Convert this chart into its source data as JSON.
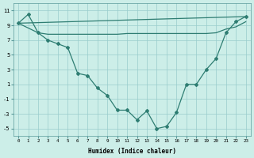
{
  "xlabel": "Humidex (Indice chaleur)",
  "bg_color": "#cceee8",
  "line_color": "#2e7d72",
  "grid_color": "#99cccc",
  "xlim": [
    -0.5,
    23.5
  ],
  "ylim": [
    -6,
    12
  ],
  "yticks": [
    -5,
    -3,
    -1,
    1,
    3,
    5,
    7,
    9,
    11
  ],
  "xticks": [
    0,
    1,
    2,
    3,
    4,
    5,
    6,
    7,
    8,
    9,
    10,
    11,
    12,
    13,
    14,
    15,
    16,
    17,
    18,
    19,
    20,
    21,
    22,
    23
  ],
  "line_flat": {
    "x": [
      0,
      2,
      3,
      4,
      5,
      6,
      7,
      8,
      9,
      10,
      11,
      12,
      13,
      14,
      15,
      16,
      17,
      18,
      19,
      20,
      21,
      22,
      23
    ],
    "y": [
      9.3,
      8.0,
      7.8,
      7.8,
      7.8,
      7.8,
      7.8,
      7.8,
      7.8,
      7.8,
      7.9,
      7.9,
      7.9,
      7.9,
      7.9,
      7.9,
      7.9,
      7.9,
      7.9,
      8.0,
      8.5,
      8.8,
      9.5
    ]
  },
  "line_diag": {
    "x": [
      0,
      23
    ],
    "y": [
      9.3,
      10.2
    ]
  },
  "line_curve": {
    "x": [
      0,
      1,
      2,
      3,
      4,
      5,
      6,
      7,
      8,
      9,
      10,
      11,
      12,
      13,
      14,
      15,
      16,
      17,
      18,
      19,
      20,
      21,
      22,
      23
    ],
    "y": [
      9.3,
      10.5,
      8.0,
      7.0,
      6.5,
      6.0,
      2.5,
      2.2,
      0.5,
      -0.5,
      -2.5,
      -2.5,
      -3.8,
      -2.6,
      -5.0,
      -4.7,
      -2.8,
      1.0,
      1.0,
      3.0,
      4.5,
      8.0,
      9.5,
      10.2
    ]
  }
}
